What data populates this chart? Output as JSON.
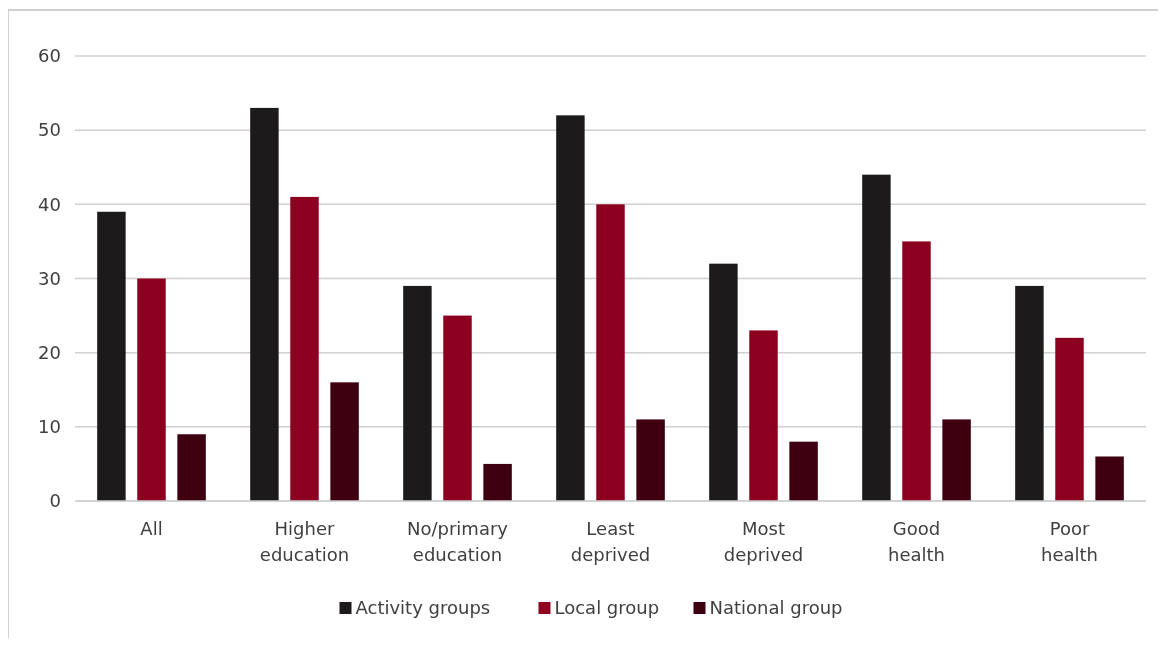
{
  "chart_data": {
    "type": "bar",
    "categories": [
      "All",
      "Higher education",
      "No/primary education",
      "Least deprived",
      "Most deprived",
      "Good health",
      "Poor health"
    ],
    "series": [
      {
        "name": "Activity groups",
        "color": "#1c1a1b",
        "values": [
          39,
          53,
          29,
          52,
          32,
          44,
          29
        ]
      },
      {
        "name": "Local group",
        "color": "#8c0020",
        "values": [
          30,
          41,
          25,
          40,
          23,
          35,
          22
        ]
      },
      {
        "name": "National group",
        "color": "#3e0010",
        "values": [
          9,
          16,
          5,
          11,
          8,
          11,
          6
        ]
      }
    ],
    "ylim": [
      0,
      60
    ],
    "yticks": [
      0,
      10,
      20,
      30,
      40,
      50,
      60
    ],
    "grid": "y",
    "legend": "bottom"
  }
}
